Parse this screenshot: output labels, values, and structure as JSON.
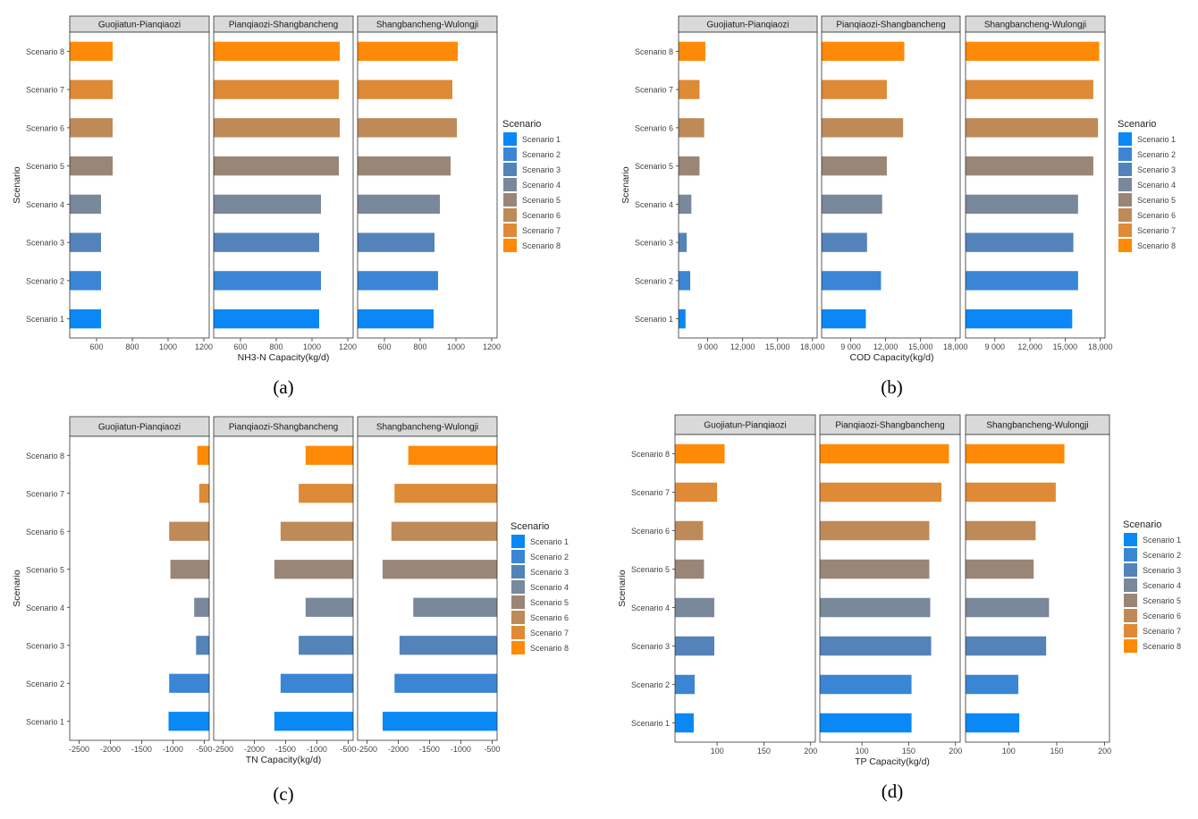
{
  "colors": {
    "scenario": [
      "#0a88f5",
      "#3a86d5",
      "#5383b8",
      "#79889a",
      "#9a8676",
      "#be8a58",
      "#de8a36",
      "#fe8a08"
    ],
    "strip_fill": "#d9d9d9",
    "panel_border": "#333333",
    "text": "#444444"
  },
  "chart_data": [
    {
      "panel_label": "(a)",
      "type": "bar",
      "orientation": "horizontal",
      "facets": [
        "Guojiatun-Pianqiaozi",
        "Pianqiaozi-Shangbancheng",
        "Shangbancheng-Wulongji"
      ],
      "categories": [
        "Scenario 1",
        "Scenario 2",
        "Scenario 3",
        "Scenario 4",
        "Scenario 5",
        "Scenario 6",
        "Scenario 7",
        "Scenario 8"
      ],
      "xlabel": "NH3-N Capacity(kg/d)",
      "ylabel": "Scenario",
      "legend_title": "Scenario",
      "xlim": [
        450,
        1230
      ],
      "xticks": [
        600,
        800,
        1000,
        1200
      ],
      "xtick_labels": [
        "600",
        "800",
        "1000",
        "1200"
      ],
      "series": [
        {
          "name": "Guojiatun-Pianqiaozi",
          "values": [
            625,
            625,
            625,
            625,
            690,
            690,
            690,
            690
          ]
        },
        {
          "name": "Pianqiaozi-Shangbancheng",
          "values": [
            1040,
            1050,
            1040,
            1050,
            1150,
            1155,
            1150,
            1155
          ]
        },
        {
          "name": "Shangbancheng-Wulongji",
          "values": [
            875,
            900,
            880,
            910,
            970,
            1005,
            980,
            1010
          ]
        }
      ]
    },
    {
      "panel_label": "(b)",
      "type": "bar",
      "orientation": "horizontal",
      "facets": [
        "Guojiatun-Pianqiaozi",
        "Pianqiaozi-Shangbancheng",
        "Shangbancheng-Wulongji"
      ],
      "categories": [
        "Scenario 1",
        "Scenario 2",
        "Scenario 3",
        "Scenario 4",
        "Scenario 5",
        "Scenario 6",
        "Scenario 7",
        "Scenario 8"
      ],
      "xlabel": "COD Capacity(kg/d)",
      "ylabel": "Scenario",
      "legend_title": "Scenario",
      "xlim": [
        6500,
        18400
      ],
      "xticks": [
        9000,
        12000,
        15000,
        18000
      ],
      "xtick_labels_by_facet": [
        [
          "9 000",
          "12,000",
          "15,000",
          "18,000"
        ],
        [
          "9 000",
          "12,000",
          "15,000",
          "18,000"
        ],
        [
          "9 000",
          "12,000",
          "15,000",
          "18,000"
        ]
      ],
      "series": [
        {
          "name": "Guojiatun-Pianqiaozi",
          "values": [
            7100,
            7500,
            7200,
            7600,
            8300,
            8700,
            8300,
            8800
          ]
        },
        {
          "name": "Pianqiaozi-Shangbancheng",
          "values": [
            10300,
            11600,
            10400,
            11700,
            12100,
            13500,
            12100,
            13600
          ]
        },
        {
          "name": "Shangbancheng-Wulongji",
          "values": [
            15600,
            16100,
            15700,
            16100,
            17400,
            17800,
            17400,
            17900
          ]
        }
      ]
    },
    {
      "panel_label": "(c)",
      "type": "bar",
      "orientation": "horizontal",
      "facets": [
        "Guojiatun-Pianqiaozi",
        "Pianqiaozi-Shangbancheng",
        "Shangbancheng-Wulongji"
      ],
      "categories": [
        "Scenario 1",
        "Scenario 2",
        "Scenario 3",
        "Scenario 4",
        "Scenario 5",
        "Scenario 6",
        "Scenario 7",
        "Scenario 8"
      ],
      "xlabel": "TN Capacity(kg/d)",
      "ylabel": "Scenario",
      "legend_title": "Scenario",
      "xlim": [
        -2650,
        -420
      ],
      "xticks": [
        -2500,
        -2000,
        -1500,
        -1000,
        -500
      ],
      "xtick_labels_by_facet": [
        [
          "-2500",
          "-2000",
          "-1500",
          "-1000",
          "-500"
        ],
        [
          "-2500",
          "-2000",
          "-1500",
          "-1000",
          "-500"
        ],
        [
          "-2500",
          "-2000",
          "-1500",
          "-1000",
          "-500"
        ]
      ],
      "series": [
        {
          "name": "Guojiatun-Pianqiaozi",
          "values": [
            -1070,
            -1060,
            -630,
            -660,
            -1040,
            -1060,
            -580,
            -610
          ]
        },
        {
          "name": "Pianqiaozi-Shangbancheng",
          "values": [
            -1680,
            -1580,
            -1290,
            -1180,
            -1680,
            -1580,
            -1290,
            -1180
          ]
        },
        {
          "name": "Shangbancheng-Wulongji",
          "values": [
            -2250,
            -2060,
            -1980,
            -1760,
            -2250,
            -2110,
            -2060,
            -1840
          ]
        }
      ]
    },
    {
      "panel_label": "(d)",
      "type": "bar",
      "orientation": "horizontal",
      "facets": [
        "Guojiatun-Pianqiaozi",
        "Pianqiaozi-Shangbancheng",
        "Shangbancheng-Wulongji"
      ],
      "categories": [
        "Scenario 1",
        "Scenario 2",
        "Scenario 3",
        "Scenario 4",
        "Scenario 5",
        "Scenario 6",
        "Scenario 7",
        "Scenario 8"
      ],
      "xlabel": "TP Capacity(kg/d)",
      "ylabel": "Scenario",
      "legend_title": "Scenario",
      "xlim": [
        55,
        205
      ],
      "xticks": [
        100,
        150,
        200
      ],
      "xtick_labels": [
        "100",
        "150",
        "200"
      ],
      "series": [
        {
          "name": "Guojiatun-Pianqiaozi",
          "values": [
            75,
            76,
            97,
            97,
            86,
            85,
            100,
            108
          ]
        },
        {
          "name": "Pianqiaozi-Shangbancheng",
          "values": [
            153,
            153,
            174,
            173,
            172,
            172,
            185,
            193
          ]
        },
        {
          "name": "Shangbancheng-Wulongji",
          "values": [
            111,
            110,
            139,
            142,
            126,
            128,
            149,
            158
          ]
        }
      ]
    }
  ]
}
